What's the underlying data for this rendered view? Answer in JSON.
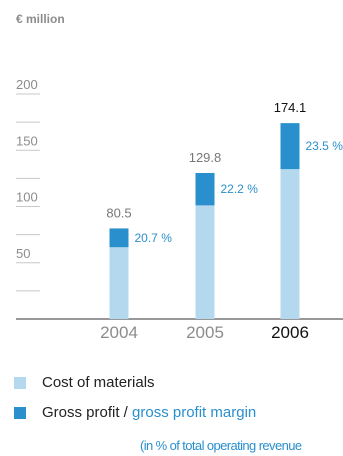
{
  "unit_label": "€ million",
  "chart_data": {
    "type": "bar",
    "stacked": true,
    "categories": [
      "2004",
      "2005",
      "2006"
    ],
    "series": [
      {
        "name": "Cost of materials",
        "values": [
          63.8,
          101.0,
          133.2
        ],
        "color": "#b4d9ee"
      },
      {
        "name": "Gross profit",
        "values": [
          16.7,
          28.8,
          40.9
        ],
        "color": "#2a8fcd"
      }
    ],
    "totals": [
      "80.5",
      "129.8",
      "174.1"
    ],
    "margins": [
      "20.7 %",
      "22.2 %",
      "23.5 %"
    ],
    "y_ticks": [
      "200",
      "150",
      "100",
      "50"
    ],
    "ylim": [
      0,
      210
    ],
    "highlight_category": "2006"
  },
  "legend": {
    "cost_label": "Cost of materials",
    "profit_label": "Gross profit /",
    "margin_label": "gross profit margin",
    "note": "(in % of total operating revenue"
  }
}
